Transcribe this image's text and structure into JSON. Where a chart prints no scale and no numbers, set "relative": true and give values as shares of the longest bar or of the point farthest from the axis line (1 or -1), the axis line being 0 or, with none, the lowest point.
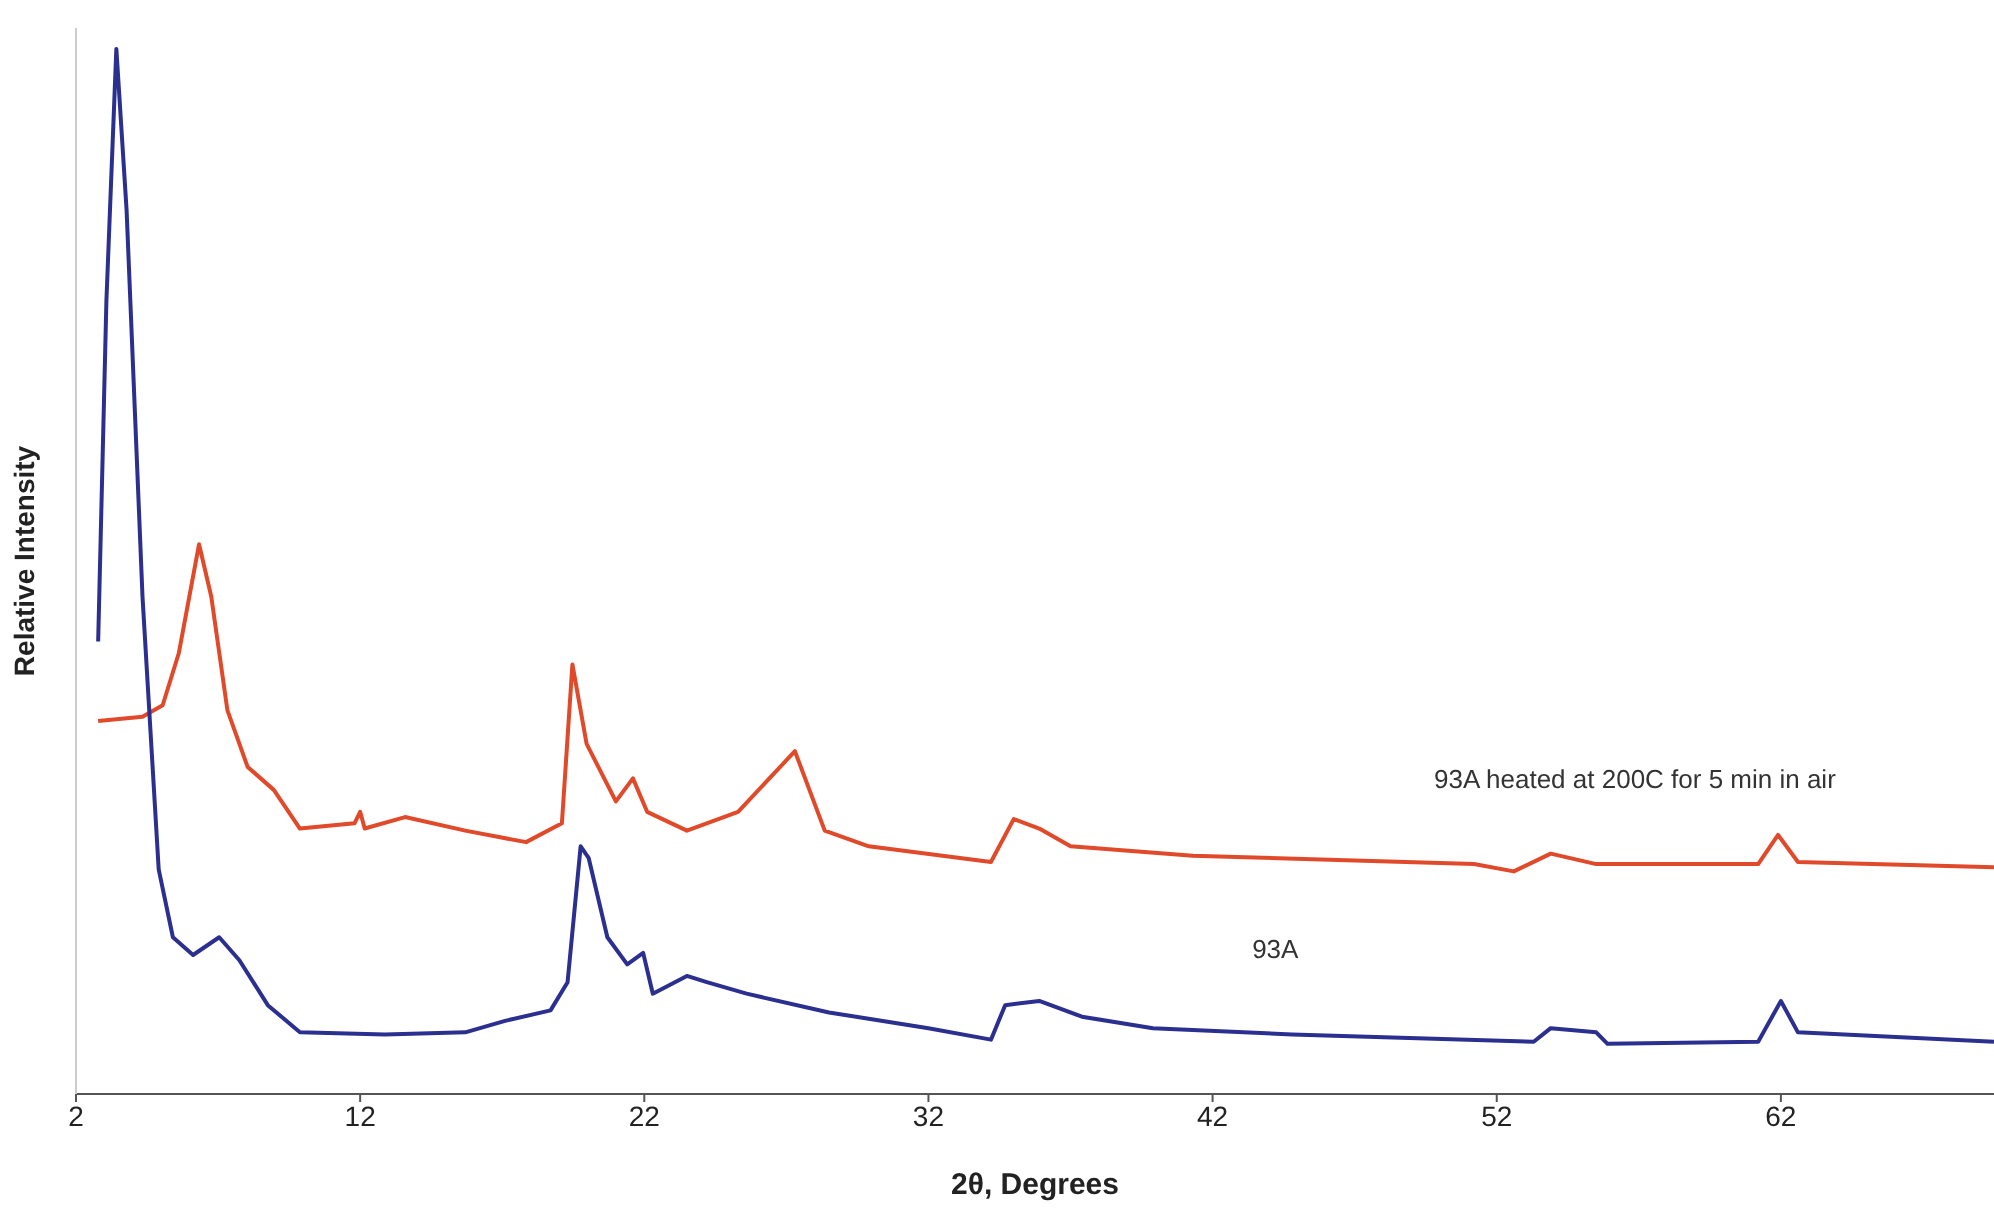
{
  "chart_data": {
    "type": "line",
    "xlabel": "2θ, Degrees",
    "ylabel": "Relative Intensity",
    "relative": true,
    "xlim": [
      2,
      69.5
    ],
    "xticks": [
      2,
      12,
      22,
      32,
      42,
      52,
      62
    ],
    "grid": false,
    "legend": false,
    "marker": "none",
    "series": [
      {
        "name": "93A heated at 200C for 5 min in air",
        "color": "#e04a2a",
        "x": [
          2.78,
          4.34,
          5.05,
          5.62,
          6.33,
          6.76,
          7.33,
          8.04,
          8.96,
          9.88,
          11.8,
          12.0,
          12.16,
          13.58,
          15.7,
          17.84,
          19.1,
          19.47,
          19.97,
          21.0,
          21.6,
          22.1,
          23.5,
          25.3,
          27.3,
          28.35,
          29.9,
          34.2,
          35.0,
          35.9,
          37.0,
          41.3,
          51.2,
          52.6,
          53.9,
          55.5,
          61.2,
          61.9,
          62.6,
          69.5
        ],
        "values": [
          0.357,
          0.361,
          0.372,
          0.422,
          0.526,
          0.476,
          0.367,
          0.313,
          0.291,
          0.254,
          0.259,
          0.27,
          0.254,
          0.265,
          0.252,
          0.241,
          0.259,
          0.411,
          0.335,
          0.28,
          0.302,
          0.27,
          0.252,
          0.27,
          0.328,
          0.252,
          0.237,
          0.222,
          0.263,
          0.254,
          0.237,
          0.228,
          0.22,
          0.213,
          0.23,
          0.22,
          0.22,
          0.248,
          0.222,
          0.217
        ]
      },
      {
        "name": "93A",
        "color": "#2b2f8f",
        "x": [
          2.78,
          3.07,
          3.42,
          3.78,
          4.34,
          4.91,
          5.41,
          6.12,
          7.04,
          7.75,
          8.75,
          9.88,
          12.87,
          15.7,
          17.1,
          18.7,
          19.3,
          19.76,
          20.04,
          20.7,
          21.4,
          21.96,
          22.3,
          23.5,
          24.2,
          25.6,
          28.5,
          32.0,
          34.2,
          34.7,
          35.9,
          37.4,
          39.9,
          44.8,
          53.3,
          53.9,
          55.5,
          55.9,
          61.2,
          62.0,
          62.6,
          69.5
        ],
        "values": [
          0.433,
          0.759,
          1.0,
          0.846,
          0.476,
          0.215,
          0.15,
          0.133,
          0.15,
          0.128,
          0.085,
          0.059,
          0.057,
          0.059,
          0.07,
          0.08,
          0.107,
          0.237,
          0.226,
          0.15,
          0.124,
          0.135,
          0.096,
          0.113,
          0.107,
          0.096,
          0.078,
          0.063,
          0.052,
          0.085,
          0.089,
          0.074,
          0.063,
          0.057,
          0.05,
          0.063,
          0.059,
          0.048,
          0.05,
          0.089,
          0.059,
          0.05
        ]
      }
    ]
  }
}
